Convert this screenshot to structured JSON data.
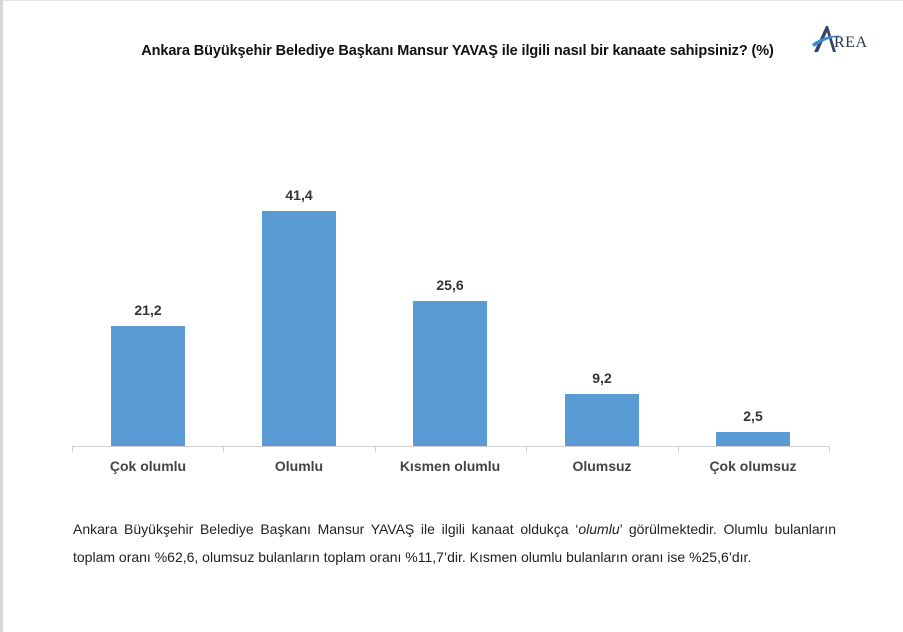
{
  "title": "Ankara Büyükşehir Belediye Başkanı Mansur YAVAŞ ile ilgili nasıl bir kanaate sahipsiniz? (%)",
  "logo": {
    "icon": "area-logo-icon",
    "text": "REA",
    "initial": "A"
  },
  "colors": {
    "bar": "#5b9bd5",
    "axis": "#d0d0d0"
  },
  "chart_data": {
    "type": "bar",
    "title": "Ankara Büyükşehir Belediye Başkanı Mansur YAVAŞ ile ilgili nasıl bir kanaate sahipsiniz? (%)",
    "categories": [
      "Çok olumlu",
      "Olumlu",
      "Kısmen olumlu",
      "Olumsuz",
      "Çok olumsuz"
    ],
    "values": [
      21.2,
      41.4,
      25.6,
      9.2,
      2.5
    ],
    "value_labels": [
      "21,2",
      "41,4",
      "25,6",
      "9,2",
      "2,5"
    ],
    "xlabel": "",
    "ylabel": "",
    "ylim": [
      0,
      45
    ],
    "grid": false,
    "legend": null,
    "data_labels": true
  },
  "note": {
    "line1_a": "Ankara Büyükşehir Belediye Başkanı Mansur YAVAŞ ile ilgili kanaat oldukça ‘",
    "line1_em": "olumlu",
    "line1_b": "’ görülmektedir. Olumlu bulanların toplam oranı %62,6, olumsuz bulanların toplam oranı %11,7’dir. Kısmen olumlu bulanların oranı ise %25,6’dır."
  }
}
